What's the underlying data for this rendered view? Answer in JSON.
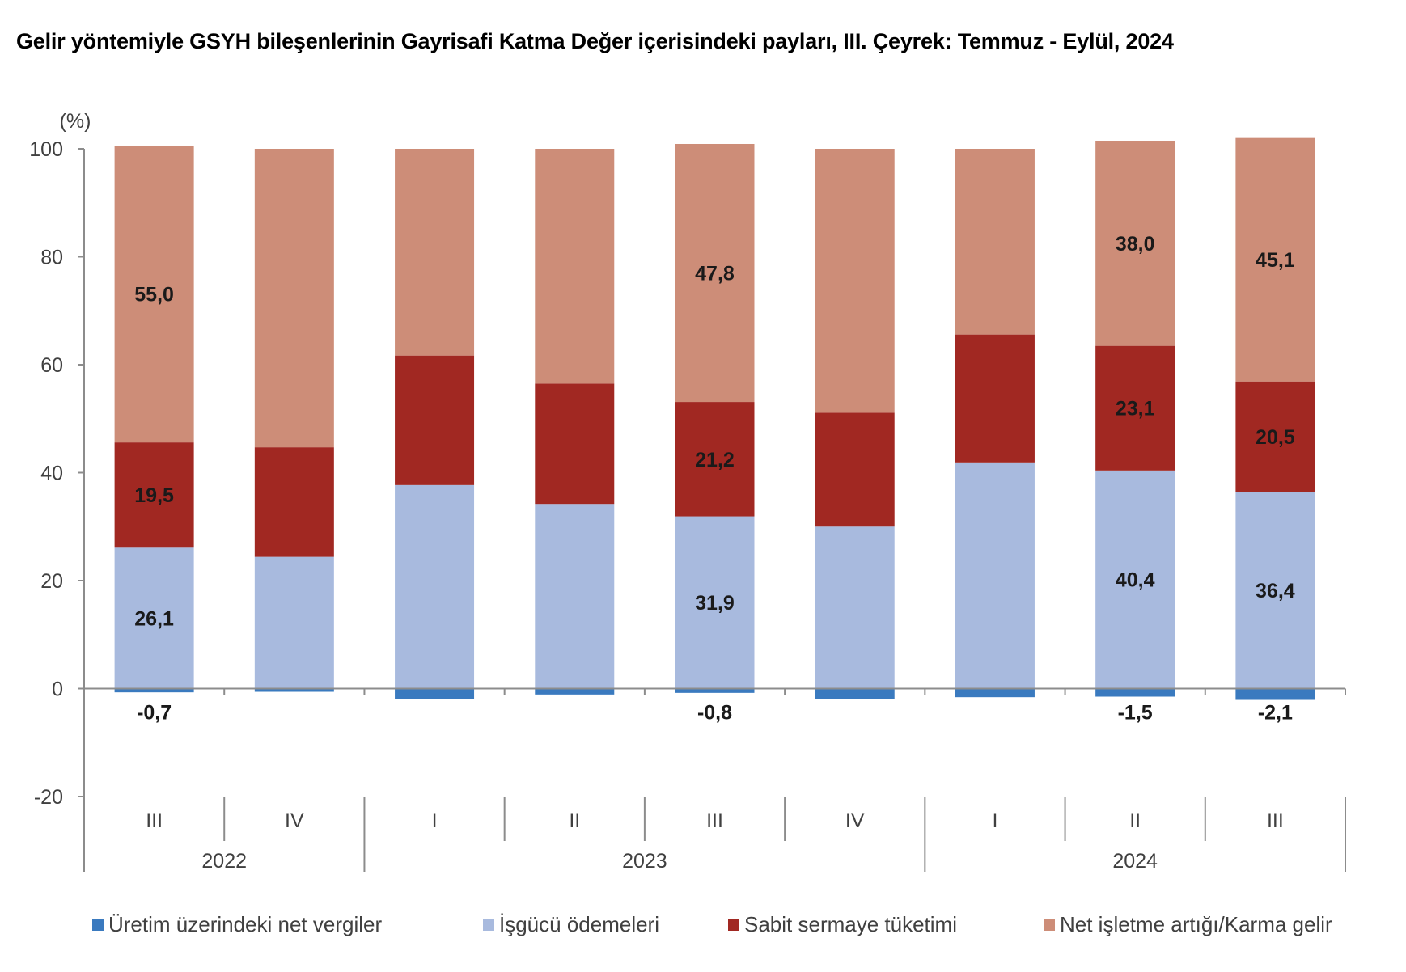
{
  "title": "Gelir yöntemiyle GSYH bileşenlerinin Gayrisafi Katma Değer içerisindeki payları, III. Çeyrek: Temmuz - Eylül, 2024",
  "chart_data": {
    "type": "bar",
    "stacked": true,
    "title": "Gelir yöntemiyle GSYH bileşenlerinin Gayrisafi Katma Değer içerisindeki payları, III. Çeyrek: Temmuz - Eylül, 2024",
    "ylabel": "(%)",
    "xlabel": "",
    "ylim": [
      -20,
      100
    ],
    "yticks": [
      -20,
      0,
      20,
      40,
      60,
      80,
      100
    ],
    "grid": false,
    "legend_position": "bottom",
    "categories": [
      "III",
      "IV",
      "I",
      "II",
      "III",
      "IV",
      "I",
      "II",
      "III"
    ],
    "groups": [
      {
        "label": "2022",
        "categories": [
          "III",
          "IV"
        ]
      },
      {
        "label": "2023",
        "categories": [
          "I",
          "II",
          "III",
          "IV"
        ]
      },
      {
        "label": "2024",
        "categories": [
          "I",
          "II",
          "III"
        ]
      }
    ],
    "series": [
      {
        "name": "Üretim üzerindeki net vergiler",
        "color": "#3a7abf",
        "values": [
          -0.7,
          -0.6,
          -2.0,
          -1.1,
          -0.8,
          -1.9,
          -1.6,
          -1.5,
          -2.1
        ],
        "labels": [
          "-0,7",
          null,
          null,
          null,
          "-0,8",
          null,
          null,
          "-1,5",
          "-2,1"
        ]
      },
      {
        "name": "İşgücü ödemeleri",
        "color": "#a8bade",
        "values": [
          26.1,
          24.4,
          37.7,
          34.2,
          31.9,
          30.0,
          41.9,
          40.4,
          36.4
        ],
        "labels": [
          "26,1",
          null,
          null,
          null,
          "31,9",
          null,
          null,
          "40,4",
          "36,4"
        ]
      },
      {
        "name": "Sabit sermaye tüketimi",
        "color": "#a12822",
        "values": [
          19.5,
          20.3,
          24.0,
          22.3,
          21.2,
          21.1,
          23.7,
          23.1,
          20.5
        ],
        "labels": [
          "19,5",
          null,
          null,
          null,
          "21,2",
          null,
          null,
          "23,1",
          "20,5"
        ]
      },
      {
        "name": "Net işletme artığı/Karma gelir",
        "color": "#cd8d78",
        "values": [
          55.0,
          55.3,
          38.3,
          43.5,
          47.8,
          48.9,
          34.4,
          38.0,
          45.1
        ],
        "labels": [
          "55,0",
          null,
          null,
          null,
          "47,8",
          null,
          null,
          "38,0",
          "45,1"
        ]
      }
    ]
  }
}
